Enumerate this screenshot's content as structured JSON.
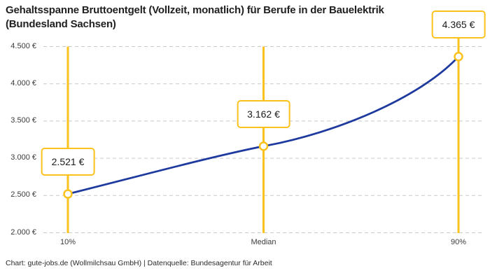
{
  "header": {
    "title_lines": [
      "Gehaltsspanne Bruttoentgelt (Vollzeit, monatlich) für Berufe in der Bauelektrik",
      "(Bundesland Sachsen)"
    ]
  },
  "footer": {
    "credit": "Chart: gute-jobs.de (Wollmilchsau GmbH) | Datenquelle: Bundesagentur für Arbeit"
  },
  "colors": {
    "accent_yellow": "#FBC21D",
    "line_blue": "#1E3A9E",
    "grid_gray": "#C9C9C9",
    "marker_fill": "#FFFFFF"
  },
  "chart_data": {
    "type": "line",
    "title": "Gehaltsspanne Bruttoentgelt (Vollzeit, monatlich) für Berufe in der Bauelektrik (Bundesland Sachsen)",
    "categories": [
      "10%",
      "Median",
      "90%"
    ],
    "values": [
      2521,
      3162,
      4365
    ],
    "point_labels": [
      "2.521 €",
      "3.162 €",
      "4.365 €"
    ],
    "xlabel": "",
    "ylabel": "",
    "ylim": [
      2000,
      4500
    ],
    "yticks": [
      {
        "value": 2000,
        "label": "2.000 €"
      },
      {
        "value": 2500,
        "label": "2.500 €"
      },
      {
        "value": 3000,
        "label": "3.000 €"
      },
      {
        "value": 3500,
        "label": "3.500 €"
      },
      {
        "value": 4000,
        "label": "4.000 €"
      },
      {
        "value": 4500,
        "label": "4.500 €"
      }
    ],
    "grid": "horizontal-dashed",
    "legend": "none",
    "annotations": "value boxes above each percentile marker, vertical accent line at each percentile"
  }
}
